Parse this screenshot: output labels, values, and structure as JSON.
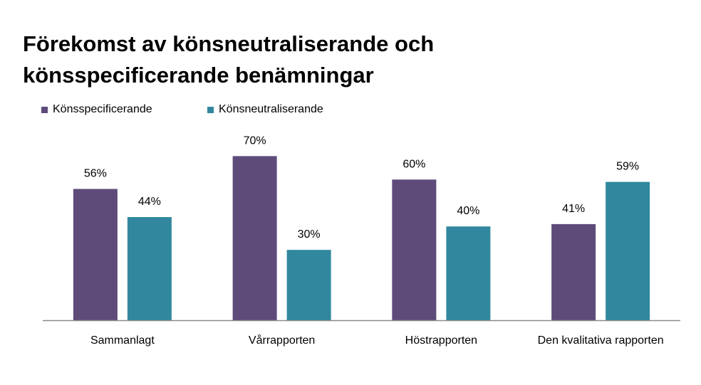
{
  "title": {
    "line1": "Förekomst av könsneutraliserande och",
    "line2": "könsspecificerande benämningar"
  },
  "colors": {
    "Könsspecificerande": "#5e4b7a",
    "Könsneutraliserande": "#31889e",
    "axis": "#8c8c8c"
  },
  "chart_data": {
    "type": "bar",
    "title": "Förekomst av könsneutraliserande och könsspecificerande benämningar",
    "categories": [
      "Sammanlagt",
      "Vårrapporten",
      "Höstrapporten",
      "Den kvalitativa rapporten"
    ],
    "series": [
      {
        "name": "Könsspecificerande",
        "values": [
          56,
          70,
          60,
          41
        ],
        "labels": [
          "56%",
          "70%",
          "60%",
          "41%"
        ]
      },
      {
        "name": "Könsneutraliserande",
        "values": [
          44,
          30,
          40,
          59
        ],
        "labels": [
          "44%",
          "30%",
          "40%",
          "59%"
        ]
      }
    ],
    "ylim": [
      0,
      100
    ],
    "grid": false,
    "legend_position": "top-left"
  }
}
